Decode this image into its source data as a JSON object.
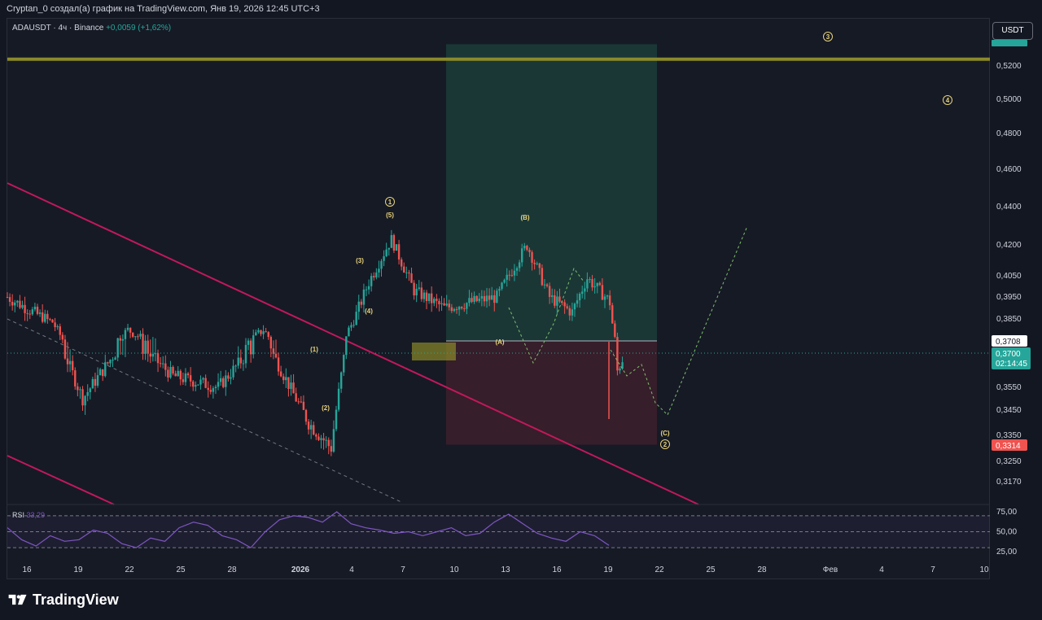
{
  "header": {
    "caption": "Cryptan_0 создал(а) график на TradingView.com, Янв 19, 2026 12:45 UTC+3"
  },
  "legend": {
    "symbol": "ADAUSDT · 4ч · Binance",
    "change": "+0,0059 (+1,62%)"
  },
  "currency_button": "USDT",
  "branding": "TradingView",
  "colors": {
    "up": "#26a69a",
    "down": "#ef5350",
    "channel": "#c2185b",
    "resistance": "#8a8a2a",
    "profit_zone": "#1b3b39",
    "loss_zone": "#3a1f2b",
    "rsi_line": "#7e57c2",
    "wave_label": "#e8d37b",
    "projection": "#7fbf6b"
  },
  "chart_data": [
    {
      "type": "line",
      "title": "",
      "symbol": "ADAUSDT",
      "timeframe": "4ч",
      "exchange": "Binance",
      "price_axis_ticks": [
        "0,5200",
        "0,5000",
        "0,4800",
        "0,4600",
        "0,4400",
        "0,4200",
        "0,4050",
        "0,3950",
        "0,3850",
        "0,3550",
        "0,3450",
        "0,3350",
        "0,3250",
        "0,3170"
      ],
      "time_axis_ticks": [
        "16",
        "19",
        "22",
        "25",
        "28",
        "2026",
        "4",
        "7",
        "10",
        "13",
        "16",
        "19",
        "22",
        "25",
        "28",
        "Фев",
        "4",
        "7",
        "10"
      ],
      "price_labels": [
        {
          "text": "0,3708",
          "value": 0.3708,
          "kind": "level"
        },
        {
          "text": "0,3700",
          "value": 0.37,
          "kind": "current"
        },
        {
          "text": "02:14:45",
          "kind": "countdown"
        },
        {
          "text": "0,3314",
          "value": 0.3314,
          "kind": "stop"
        }
      ],
      "current_price": 0.37,
      "approx_path": [
        {
          "t": 0,
          "v": 0.395
        },
        {
          "t": 3,
          "v": 0.383
        },
        {
          "t": 5,
          "v": 0.35
        },
        {
          "t": 8,
          "v": 0.378
        },
        {
          "t": 11,
          "v": 0.36
        },
        {
          "t": 14,
          "v": 0.355
        },
        {
          "t": 17,
          "v": 0.378
        },
        {
          "t": 19,
          "v": 0.352
        },
        {
          "t": 20,
          "v": 0.34
        },
        {
          "t": 21.5,
          "v": 0.33
        },
        {
          "t": 22.5,
          "v": 0.375
        },
        {
          "t": 24,
          "v": 0.402
        },
        {
          "t": 25.5,
          "v": 0.423
        },
        {
          "t": 27,
          "v": 0.398
        },
        {
          "t": 29,
          "v": 0.39
        },
        {
          "t": 31,
          "v": 0.393
        },
        {
          "t": 32.5,
          "v": 0.395
        },
        {
          "t": 34.5,
          "v": 0.42
        },
        {
          "t": 36,
          "v": 0.395
        },
        {
          "t": 37.5,
          "v": 0.388
        },
        {
          "t": 38.5,
          "v": 0.404
        },
        {
          "t": 40,
          "v": 0.393
        },
        {
          "t": 40.5,
          "v": 0.362
        },
        {
          "t": 41,
          "v": 0.37
        }
      ],
      "elliott_labels": [
        "(1)",
        "(2)",
        "(3)",
        "(4)",
        "(5)",
        "(A)",
        "(B)",
        "(C)"
      ],
      "circled_labels": [
        "1",
        "2",
        "3",
        "4"
      ],
      "resistance_level": 0.524,
      "position": {
        "entry": 0.3708,
        "stop": 0.3314,
        "target": 0.533
      }
    },
    {
      "type": "line",
      "title": "RSI",
      "value_label": "33,29",
      "axis_ticks": [
        "75,00",
        "50,00",
        "25,00"
      ],
      "overbought": 70,
      "midline": 50,
      "oversold": 30,
      "approx_values": [
        55,
        40,
        32,
        45,
        38,
        40,
        52,
        48,
        35,
        30,
        42,
        38,
        55,
        62,
        58,
        45,
        40,
        30,
        50,
        65,
        70,
        68,
        62,
        75,
        60,
        55,
        52,
        48,
        50,
        45,
        50,
        55,
        45,
        48,
        62,
        72,
        60,
        48,
        42,
        38,
        50,
        45,
        33
      ]
    }
  ]
}
